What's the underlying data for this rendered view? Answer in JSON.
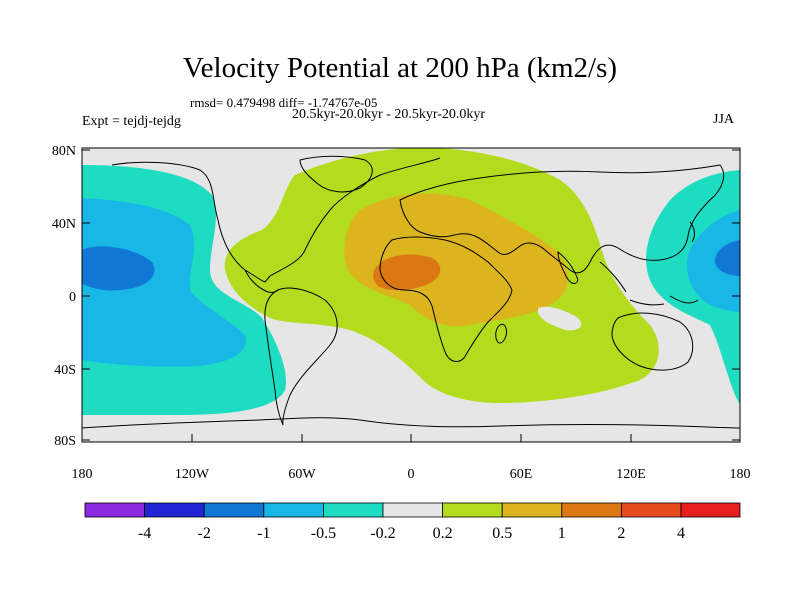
{
  "title": "Velocity Potential at 200 hPa (km2/s)",
  "stats_line": "rmsd= 0.479498 diff= -1.74767e-05",
  "period_line": "20.5kyr-20.0kyr - 20.5kyr-20.0kyr",
  "experiment_label": "Expt = tejdj-tejdg",
  "season_label": "JJA",
  "axes": {
    "y_ticks": [
      "80N",
      "40N",
      "0",
      "40S",
      "80S"
    ],
    "x_ticks": [
      "180",
      "120W",
      "60W",
      "0",
      "60E",
      "120E",
      "180"
    ]
  },
  "colorbar": {
    "colors": [
      "#8a2be2",
      "#2323d6",
      "#1077d4",
      "#18b7e6",
      "#1edcc2",
      "#e6e6e6",
      "#b4dc1e",
      "#dcb41e",
      "#dc7814",
      "#e64a1e",
      "#e61e1e"
    ],
    "labels": [
      "-4",
      "-2",
      "-1",
      "-0.5",
      "-0.2",
      "0.2",
      "0.5",
      "1",
      "2",
      "4"
    ]
  },
  "colors": {
    "neutral": "#e6e6e6",
    "positive_weak": "#b4dc1e",
    "positive_mid": "#dcb41e",
    "positive_strong": "#dc7814",
    "negative_weak": "#1edcc2",
    "negative_mid": "#18b7e6",
    "negative_strong": "#1077d4"
  }
}
